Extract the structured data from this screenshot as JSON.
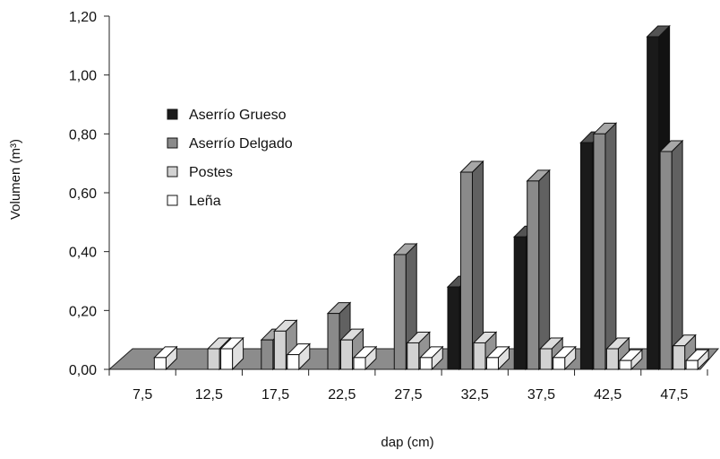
{
  "chart_data": {
    "type": "bar",
    "variant": "3d-grouped",
    "categories": [
      "7,5",
      "12,5",
      "17,5",
      "22,5",
      "27,5",
      "32,5",
      "37,5",
      "42,5",
      "47,5"
    ],
    "series": [
      {
        "name": "Aserrío Grueso",
        "color": "#1a1a1a",
        "values": [
          0,
          0,
          0,
          0,
          0,
          0.28,
          0.45,
          0.77,
          1.13
        ]
      },
      {
        "name": "Aserrío Delgado",
        "color": "#8a8a8a",
        "values": [
          0,
          0,
          0.1,
          0.19,
          0.39,
          0.67,
          0.64,
          0.8,
          0.74
        ]
      },
      {
        "name": "Postes",
        "color": "#d2d2d2",
        "values": [
          0,
          0.07,
          0.13,
          0.1,
          0.09,
          0.09,
          0.07,
          0.07,
          0.08
        ]
      },
      {
        "name": "Leña",
        "color": "#ffffff",
        "values": [
          0.04,
          0.07,
          0.05,
          0.04,
          0.04,
          0.04,
          0.04,
          0.03,
          0.03
        ]
      }
    ],
    "xlabel": "dap (cm)",
    "ylabel": "Volumen (m³)",
    "ylim": [
      0,
      1.2
    ],
    "yticks": [
      "0,00",
      "0,20",
      "0,40",
      "0,60",
      "0,80",
      "1,00",
      "1,20"
    ],
    "grid": false,
    "legend_position": "top-left"
  }
}
